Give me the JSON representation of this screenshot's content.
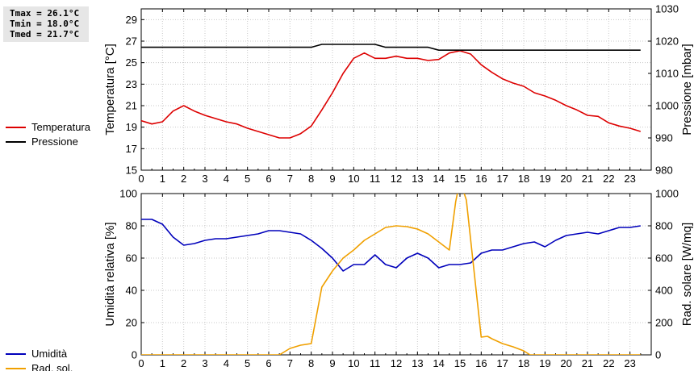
{
  "stats": {
    "tmax": "Tmax = 26.1°C",
    "tmin": "Tmin = 18.0°C",
    "tmed": "Tmed = 21.7°C"
  },
  "chart_data": [
    {
      "type": "line",
      "x_ticks": [
        0,
        1,
        2,
        3,
        4,
        5,
        6,
        7,
        8,
        9,
        10,
        11,
        12,
        13,
        14,
        15,
        16,
        17,
        18,
        19,
        20,
        21,
        22,
        23
      ],
      "xlim": [
        0,
        24
      ],
      "ylabel": "Temperatura [°C]",
      "ylim": [
        15,
        30
      ],
      "y_ticks": [
        15,
        17,
        19,
        21,
        23,
        25,
        27,
        29
      ],
      "y2label": "Pressione [mbar]",
      "y2lim": [
        980,
        1030
      ],
      "y2_ticks": [
        980,
        990,
        1000,
        1010,
        1020,
        1030
      ],
      "grid": true,
      "legend_position": "left",
      "series": [
        {
          "name": "Temperatura",
          "axis": "left",
          "color": "#dd0000",
          "x": [
            0,
            0.5,
            1,
            1.25,
            1.5,
            2,
            2.5,
            3,
            3.5,
            4,
            4.5,
            5,
            5.5,
            6,
            6.5,
            7,
            7.5,
            8,
            8.5,
            9,
            9.5,
            10,
            10.5,
            11,
            11.5,
            12,
            12.5,
            13,
            13.5,
            14,
            14.5,
            15,
            15.5,
            16,
            16.5,
            17,
            17.5,
            18,
            18.5,
            19,
            19.5,
            20,
            20.5,
            21,
            21.5,
            22,
            22.5,
            23,
            23.5
          ],
          "y": [
            19.6,
            19.3,
            19.5,
            20.0,
            20.5,
            21.0,
            20.5,
            20.1,
            19.8,
            19.5,
            19.3,
            18.9,
            18.6,
            18.3,
            18.0,
            18.0,
            18.4,
            19.1,
            20.6,
            22.2,
            24.0,
            25.4,
            25.9,
            25.4,
            25.4,
            25.6,
            25.4,
            25.4,
            25.2,
            25.3,
            25.9,
            26.1,
            25.8,
            24.8,
            24.1,
            23.5,
            23.1,
            22.8,
            22.2,
            21.9,
            21.5,
            21.0,
            20.6,
            20.1,
            20.0,
            19.4,
            19.1,
            18.9,
            18.6
          ]
        },
        {
          "name": "Pressione",
          "axis": "right",
          "color": "#000000",
          "x": [
            0,
            8,
            8.5,
            11,
            11.5,
            13.5,
            14,
            23.5
          ],
          "y": [
            1018.1,
            1018.1,
            1019.0,
            1019.0,
            1018.1,
            1018.1,
            1017.2,
            1017.2
          ]
        }
      ]
    },
    {
      "type": "line",
      "x_ticks": [
        0,
        1,
        2,
        3,
        4,
        5,
        6,
        7,
        8,
        9,
        10,
        11,
        12,
        13,
        14,
        15,
        16,
        17,
        18,
        19,
        20,
        21,
        22,
        23
      ],
      "xlim": [
        0,
        24
      ],
      "ylabel": "Umidità relativa [%]",
      "ylim": [
        0,
        100
      ],
      "y_ticks": [
        0,
        20,
        40,
        60,
        80,
        100
      ],
      "y2label": "Rad. solare [W/mq]",
      "y2lim": [
        0,
        1000
      ],
      "y2_ticks": [
        0,
        200,
        400,
        600,
        800,
        1000
      ],
      "grid": true,
      "legend_position": "left",
      "series": [
        {
          "name": "Umidità",
          "axis": "left",
          "color": "#0000bb",
          "x": [
            0,
            0.5,
            1,
            1.5,
            2,
            2.5,
            3,
            3.5,
            4,
            4.5,
            5,
            5.5,
            6,
            6.5,
            7,
            7.5,
            8,
            8.5,
            9,
            9.5,
            10,
            10.5,
            11,
            11.5,
            12,
            12.5,
            13,
            13.5,
            14,
            14.5,
            15,
            15.5,
            16,
            16.5,
            17,
            17.5,
            18,
            18.5,
            19,
            19.5,
            20,
            20.5,
            21,
            21.5,
            22,
            22.5,
            23,
            23.5
          ],
          "y": [
            84,
            84,
            81,
            73,
            68,
            69,
            71,
            72,
            72,
            73,
            74,
            75,
            77,
            77,
            76,
            75,
            71,
            66,
            60,
            52,
            56,
            56,
            62,
            56,
            54,
            60,
            63,
            60,
            54,
            56,
            56,
            57,
            63,
            65,
            65,
            67,
            69,
            70,
            67,
            71,
            74,
            75,
            76,
            75,
            77,
            79,
            79,
            80
          ]
        },
        {
          "name": "Rad. sol.",
          "axis": "right",
          "color": "#f0a000",
          "x": [
            0,
            6.5,
            7,
            7.5,
            8,
            8.5,
            9,
            9.5,
            10,
            10.5,
            11,
            11.5,
            12,
            12.5,
            13,
            13.5,
            14,
            14.5,
            14.8,
            15,
            15.3,
            16,
            16.3,
            16.5,
            17,
            17.5,
            18,
            18.3,
            23.5
          ],
          "y": [
            0,
            0,
            40,
            60,
            70,
            420,
            520,
            600,
            650,
            710,
            750,
            790,
            800,
            795,
            780,
            750,
            700,
            650,
            950,
            1080,
            960,
            110,
            115,
            100,
            70,
            50,
            25,
            0,
            0
          ]
        }
      ]
    }
  ]
}
